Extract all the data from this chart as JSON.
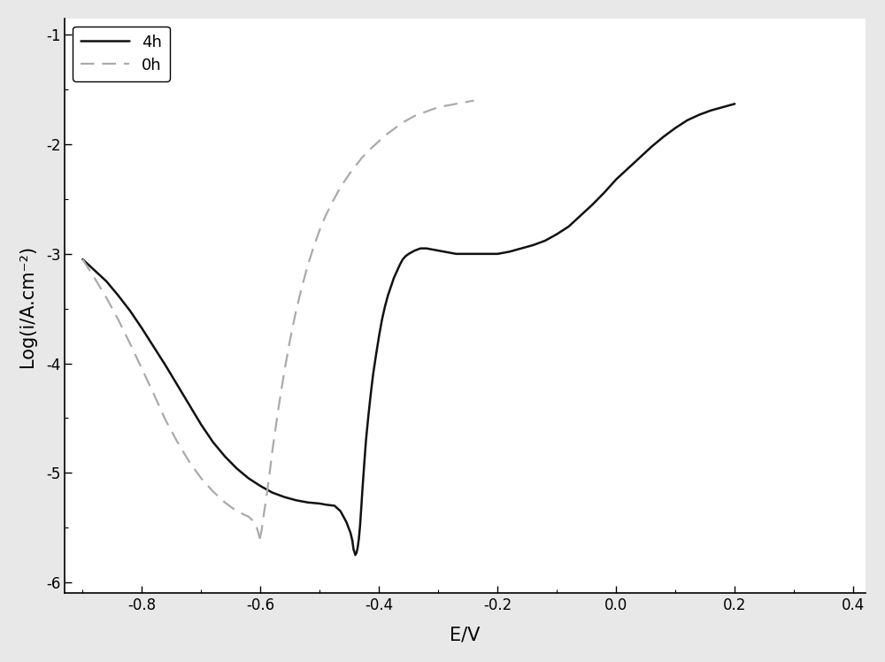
{
  "xlabel": "E/V",
  "ylabel": "Log(i/A.cm⁻²)",
  "xlim": [
    -0.93,
    0.42
  ],
  "ylim": [
    -6.1,
    -0.85
  ],
  "xticks": [
    -0.8,
    -0.6,
    -0.4,
    -0.2,
    0.0,
    0.2,
    0.4
  ],
  "yticks": [
    -6,
    -5,
    -4,
    -3,
    -2,
    -1
  ],
  "legend_4h": "4h",
  "legend_0h": "0h",
  "line_4h_color": "#111111",
  "line_0h_color": "#aaaaaa",
  "background_color": "#e8e8e8",
  "plot_bg_color": "#ffffff",
  "linewidth_4h": 1.8,
  "linewidth_0h": 1.6,
  "legend_fontsize": 13,
  "axis_fontsize": 15,
  "tick_fontsize": 12,
  "curve_4h_cat_E": [
    -0.9,
    -0.88,
    -0.86,
    -0.84,
    -0.82,
    -0.8,
    -0.78,
    -0.76,
    -0.74,
    -0.72,
    -0.7,
    -0.68,
    -0.66,
    -0.64,
    -0.62,
    -0.6,
    -0.58,
    -0.56,
    -0.54,
    -0.52,
    -0.5,
    -0.49,
    -0.475,
    -0.465,
    -0.455,
    -0.448,
    -0.445
  ],
  "curve_4h_cat_logI": [
    -3.05,
    -3.15,
    -3.25,
    -3.38,
    -3.52,
    -3.68,
    -3.85,
    -4.02,
    -4.2,
    -4.38,
    -4.56,
    -4.72,
    -4.85,
    -4.96,
    -5.05,
    -5.12,
    -5.18,
    -5.22,
    -5.25,
    -5.27,
    -5.28,
    -5.29,
    -5.3,
    -5.35,
    -5.45,
    -5.55,
    -5.62
  ],
  "curve_4h_ano_E": [
    -0.445,
    -0.443,
    -0.441,
    -0.44,
    -0.438,
    -0.436,
    -0.434,
    -0.432,
    -0.43,
    -0.428,
    -0.425,
    -0.422,
    -0.418,
    -0.414,
    -0.41,
    -0.405,
    -0.4,
    -0.395,
    -0.39,
    -0.385,
    -0.38,
    -0.375,
    -0.37,
    -0.365,
    -0.36,
    -0.355,
    -0.35,
    -0.34,
    -0.33,
    -0.32,
    -0.31,
    -0.3,
    -0.29,
    -0.28,
    -0.27,
    -0.26,
    -0.25,
    -0.24,
    -0.23,
    -0.22,
    -0.21,
    -0.2,
    -0.18,
    -0.16,
    -0.14,
    -0.12,
    -0.1,
    -0.08,
    -0.06,
    -0.04,
    -0.02,
    0.0,
    0.02,
    0.04,
    0.06,
    0.08,
    0.1,
    0.12,
    0.14,
    0.16,
    0.18,
    0.2
  ],
  "curve_4h_ano_logI": [
    -5.62,
    -5.7,
    -5.73,
    -5.75,
    -5.73,
    -5.68,
    -5.6,
    -5.48,
    -5.32,
    -5.15,
    -4.92,
    -4.7,
    -4.48,
    -4.28,
    -4.1,
    -3.92,
    -3.75,
    -3.6,
    -3.48,
    -3.38,
    -3.3,
    -3.22,
    -3.16,
    -3.1,
    -3.05,
    -3.02,
    -3.0,
    -2.97,
    -2.95,
    -2.95,
    -2.96,
    -2.97,
    -2.98,
    -2.99,
    -3.0,
    -3.0,
    -3.0,
    -3.0,
    -3.0,
    -3.0,
    -3.0,
    -3.0,
    -2.98,
    -2.95,
    -2.92,
    -2.88,
    -2.82,
    -2.75,
    -2.65,
    -2.55,
    -2.44,
    -2.32,
    -2.22,
    -2.12,
    -2.02,
    -1.93,
    -1.85,
    -1.78,
    -1.73,
    -1.69,
    -1.66,
    -1.63
  ],
  "curve_0h_cat_E": [
    -0.9,
    -0.88,
    -0.86,
    -0.84,
    -0.82,
    -0.8,
    -0.78,
    -0.76,
    -0.74,
    -0.72,
    -0.7,
    -0.68,
    -0.66,
    -0.64,
    -0.62,
    -0.612,
    -0.608,
    -0.605,
    -0.603,
    -0.601
  ],
  "curve_0h_cat_logI": [
    -3.05,
    -3.22,
    -3.4,
    -3.6,
    -3.82,
    -4.05,
    -4.28,
    -4.52,
    -4.72,
    -4.9,
    -5.05,
    -5.17,
    -5.27,
    -5.35,
    -5.4,
    -5.44,
    -5.48,
    -5.52,
    -5.56,
    -5.6
  ],
  "curve_0h_ano_E": [
    -0.601,
    -0.598,
    -0.595,
    -0.59,
    -0.585,
    -0.58,
    -0.57,
    -0.56,
    -0.55,
    -0.54,
    -0.53,
    -0.52,
    -0.51,
    -0.5,
    -0.49,
    -0.48,
    -0.47,
    -0.46,
    -0.45,
    -0.44,
    -0.43,
    -0.42,
    -0.41,
    -0.4,
    -0.39,
    -0.38,
    -0.37,
    -0.36,
    -0.35,
    -0.34,
    -0.33,
    -0.32,
    -0.31,
    -0.3,
    -0.29,
    -0.28,
    -0.27,
    -0.26,
    -0.25,
    -0.24
  ],
  "curve_0h_ano_logI": [
    -5.6,
    -5.52,
    -5.4,
    -5.22,
    -5.02,
    -4.8,
    -4.42,
    -4.08,
    -3.78,
    -3.52,
    -3.3,
    -3.1,
    -2.93,
    -2.78,
    -2.65,
    -2.54,
    -2.44,
    -2.35,
    -2.27,
    -2.2,
    -2.13,
    -2.07,
    -2.02,
    -1.97,
    -1.92,
    -1.88,
    -1.84,
    -1.8,
    -1.77,
    -1.74,
    -1.72,
    -1.7,
    -1.68,
    -1.66,
    -1.65,
    -1.64,
    -1.63,
    -1.62,
    -1.61,
    -1.6
  ]
}
